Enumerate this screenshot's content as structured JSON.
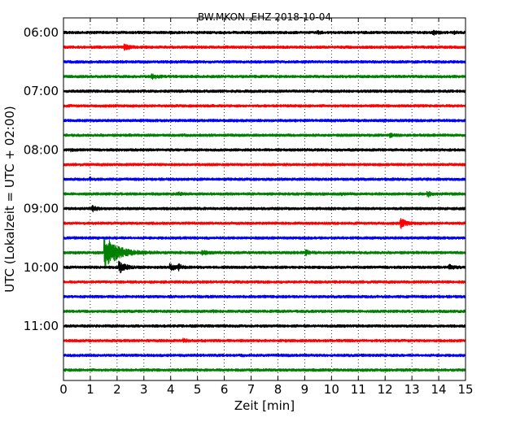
{
  "chart_data": {
    "type": "line",
    "title": "BW.MKON..EHZ 2018-10-04",
    "xlabel": "Zeit  [min]",
    "ylabel": "UTC (Lokalzeit = UTC + 02:00)",
    "xlim": [
      0,
      15
    ],
    "xticks": [
      "0",
      "1",
      "2",
      "3",
      "4",
      "5",
      "6",
      "7",
      "8",
      "9",
      "10",
      "11",
      "12",
      "13",
      "14",
      "15"
    ],
    "yticks": [
      "06:00",
      "07:00",
      "08:00",
      "09:00",
      "10:00",
      "11:00"
    ],
    "trace_start": "06:00",
    "trace_interval_min": 15,
    "trace_colors": [
      "#000000",
      "#ff0000",
      "#0000ff",
      "#008000"
    ],
    "grid": "x-dotted",
    "traces": [
      {
        "start": "06:00",
        "events": [
          {
            "t": 9.5,
            "amp": 0.2
          },
          {
            "t": 13.8,
            "amp": 0.35
          },
          {
            "t": 14.6,
            "amp": 0.15
          }
        ]
      },
      {
        "start": "06:15",
        "events": [
          {
            "t": 2.3,
            "amp": 0.5
          }
        ]
      },
      {
        "start": "06:30",
        "events": []
      },
      {
        "start": "06:45",
        "events": [
          {
            "t": 3.3,
            "amp": 0.5
          }
        ]
      },
      {
        "start": "07:00",
        "events": []
      },
      {
        "start": "07:15",
        "events": []
      },
      {
        "start": "07:30",
        "events": [
          {
            "t": 11.9,
            "amp": 0.1
          }
        ]
      },
      {
        "start": "07:45",
        "events": [
          {
            "t": 12.2,
            "amp": 0.25
          }
        ]
      },
      {
        "start": "08:00",
        "events": [
          {
            "t": 0.3,
            "amp": 0.15
          }
        ]
      },
      {
        "start": "08:15",
        "events": []
      },
      {
        "start": "08:30",
        "events": [
          {
            "t": 1.0,
            "amp": 0.2
          }
        ]
      },
      {
        "start": "08:45",
        "events": [
          {
            "t": 4.3,
            "amp": 0.2
          },
          {
            "t": 10.4,
            "amp": 0.1
          },
          {
            "t": 13.6,
            "amp": 0.45
          }
        ]
      },
      {
        "start": "09:00",
        "events": [
          {
            "t": 1.1,
            "amp": 0.45
          }
        ]
      },
      {
        "start": "09:15",
        "events": [
          {
            "t": 12.6,
            "amp": 0.75
          }
        ]
      },
      {
        "start": "09:30",
        "events": []
      },
      {
        "start": "09:45",
        "events": [
          {
            "t": 1.55,
            "amp": 3.0
          },
          {
            "t": 5.2,
            "amp": 0.4
          },
          {
            "t": 9.05,
            "amp": 0.4
          }
        ]
      },
      {
        "start": "10:00",
        "events": [
          {
            "t": 2.1,
            "amp": 1.0
          },
          {
            "t": 4.0,
            "amp": 0.55
          },
          {
            "t": 4.3,
            "amp": 0.45
          },
          {
            "t": 14.4,
            "amp": 0.5
          }
        ]
      },
      {
        "start": "10:15",
        "events": []
      },
      {
        "start": "10:30",
        "events": []
      },
      {
        "start": "10:45",
        "events": [
          {
            "t": 5.6,
            "amp": 0.1
          }
        ]
      },
      {
        "start": "11:00",
        "events": []
      },
      {
        "start": "11:15",
        "events": [
          {
            "t": 4.5,
            "amp": 0.3
          }
        ]
      },
      {
        "start": "11:30",
        "events": []
      },
      {
        "start": "11:45",
        "events": []
      }
    ]
  }
}
